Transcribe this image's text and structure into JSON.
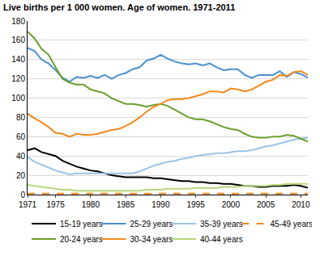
{
  "chart_data": {
    "type": "line",
    "title": "Live births per 1 000 women. Age of women. 1971-2011",
    "x": [
      1971,
      1972,
      1973,
      1974,
      1975,
      1976,
      1977,
      1978,
      1979,
      1980,
      1981,
      1982,
      1983,
      1984,
      1985,
      1986,
      1987,
      1988,
      1989,
      1990,
      1991,
      1992,
      1993,
      1994,
      1995,
      1996,
      1997,
      1998,
      1999,
      2000,
      2001,
      2002,
      2003,
      2004,
      2005,
      2006,
      2007,
      2008,
      2009,
      2010,
      2011
    ],
    "series": [
      {
        "name": "15-19 years",
        "color": "#000000",
        "line_style": "solid",
        "values": [
          46,
          48,
          44,
          42,
          40,
          35,
          32,
          29,
          27,
          25,
          24,
          22,
          20,
          19,
          18,
          18,
          18,
          18,
          17,
          17,
          16,
          15,
          14,
          14,
          13,
          13,
          12,
          12,
          11,
          11,
          10,
          9,
          9,
          8,
          8,
          9,
          9,
          9,
          10,
          9,
          7
        ]
      },
      {
        "name": "25-29 years",
        "color": "#4a90cf",
        "line_style": "solid",
        "values": [
          152,
          149,
          140,
          136,
          129,
          121,
          117,
          122,
          121,
          123,
          121,
          124,
          120,
          124,
          126,
          130,
          132,
          139,
          141,
          145,
          141,
          138,
          136,
          135,
          136,
          134,
          136,
          132,
          129,
          130,
          130,
          124,
          121,
          124,
          124,
          124,
          128,
          122,
          127,
          125,
          121
        ]
      },
      {
        "name": "35-39 years",
        "color": "#9cc3e4",
        "line_style": "solid",
        "values": [
          39,
          34,
          31,
          28,
          25,
          23,
          21,
          22,
          22,
          22,
          22,
          22,
          22,
          22,
          22,
          22,
          24,
          27,
          30,
          32,
          34,
          35,
          37,
          38,
          40,
          41,
          42,
          43,
          43,
          44,
          45,
          45,
          46,
          48,
          50,
          51,
          53,
          55,
          57,
          58,
          59
        ]
      },
      {
        "name": "45-49 years",
        "color": "#f28a1e",
        "line_style": "dash",
        "values": [
          1,
          1,
          1,
          1,
          1,
          0.5,
          0.5,
          0.5,
          0.5,
          0.5,
          0.5,
          0.5,
          0.5,
          0.5,
          0.5,
          0.5,
          0.5,
          0.5,
          0.5,
          0.5,
          0.5,
          0.5,
          0.5,
          0.5,
          0.5,
          0.5,
          0.5,
          0.5,
          0.5,
          0.5,
          0.5,
          0.5,
          0.5,
          0.5,
          0.5,
          0.5,
          1,
          1,
          1,
          1,
          1
        ]
      },
      {
        "name": "20-24 years",
        "color": "#6d9e2e",
        "line_style": "solid",
        "values": [
          169,
          162,
          151,
          145,
          132,
          120,
          116,
          114,
          114,
          109,
          107,
          105,
          100,
          97,
          94,
          94,
          93,
          91,
          93,
          94,
          92,
          88,
          84,
          80,
          78,
          78,
          76,
          73,
          70,
          68,
          67,
          63,
          60,
          59,
          59,
          60,
          60,
          62,
          61,
          58,
          55
        ]
      },
      {
        "name": "30-34 years",
        "color": "#f28a1e",
        "line_style": "solid",
        "values": [
          84,
          79,
          75,
          70,
          64,
          63,
          60,
          63,
          62,
          62,
          63,
          65,
          67,
          68,
          71,
          75,
          80,
          86,
          91,
          94,
          98,
          99,
          99,
          100,
          102,
          104,
          107,
          107,
          106,
          110,
          109,
          107,
          109,
          113,
          117,
          119,
          124,
          123,
          127,
          128,
          124
        ]
      },
      {
        "name": "40-44 years",
        "color": "#b7d67a",
        "line_style": "solid",
        "values": [
          10,
          9,
          8,
          7,
          6,
          5,
          5,
          4,
          4,
          4,
          4,
          4,
          4,
          4,
          4,
          4,
          4,
          5,
          5,
          5,
          6,
          6,
          6,
          6,
          7,
          7,
          7,
          7,
          8,
          8,
          8,
          9,
          9,
          9,
          9,
          10,
          10,
          11,
          11,
          11,
          11
        ]
      }
    ],
    "xlim": [
      1971,
      2011
    ],
    "xticks": [
      1971,
      1975,
      1980,
      1985,
      1990,
      1995,
      2000,
      2005,
      2010
    ],
    "ylim": [
      0,
      180
    ],
    "yticks": [
      0,
      20,
      40,
      60,
      80,
      100,
      120,
      140,
      160,
      180
    ],
    "grid": true,
    "legend": "bottom"
  }
}
